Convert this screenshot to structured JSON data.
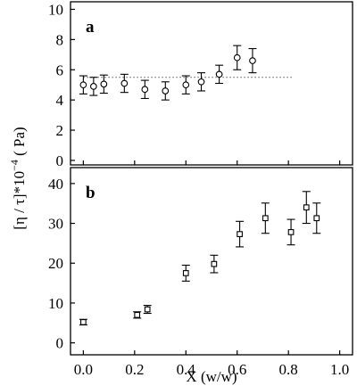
{
  "chart_data": [
    {
      "type": "scatter",
      "panel_label": "a",
      "marker": "circle",
      "x": [
        0.0,
        0.04,
        0.08,
        0.16,
        0.24,
        0.32,
        0.4,
        0.46,
        0.53,
        0.6,
        0.66
      ],
      "y": [
        5.0,
        4.9,
        5.05,
        5.1,
        4.7,
        4.6,
        5.0,
        5.2,
        5.7,
        6.8,
        6.6
      ],
      "err": [
        0.6,
        0.6,
        0.6,
        0.6,
        0.6,
        0.6,
        0.6,
        0.6,
        0.6,
        0.8,
        0.8
      ],
      "reference_line": {
        "y": 5.5,
        "x_range": [
          0.0,
          0.82
        ],
        "style": "dotted"
      },
      "ylim": [
        -0.3,
        10.5
      ],
      "yticks": [
        "0",
        "2",
        "4",
        "6",
        "8",
        "10"
      ],
      "ytick_values": [
        0,
        2,
        4,
        6,
        8,
        10
      ]
    },
    {
      "type": "scatter",
      "panel_label": "b",
      "marker": "square",
      "x": [
        0.0,
        0.21,
        0.25,
        0.4,
        0.51,
        0.61,
        0.71,
        0.81,
        0.87,
        0.91
      ],
      "y": [
        5.2,
        7.0,
        8.4,
        17.5,
        19.8,
        27.3,
        31.3,
        27.8,
        34.0,
        31.3
      ],
      "err": [
        0.7,
        0.8,
        1.0,
        2.0,
        2.2,
        3.2,
        3.8,
        3.2,
        4.0,
        3.8
      ],
      "ylim": [
        -3,
        44
      ],
      "yticks": [
        "0",
        "10",
        "20",
        "30",
        "40"
      ],
      "ytick_values": [
        0,
        10,
        20,
        30,
        40
      ]
    }
  ],
  "shared_x": {
    "xlabel": "X (w/w)",
    "xlim": [
      -0.05,
      1.05
    ],
    "xticks": [
      "0.0",
      "0.2",
      "0.4",
      "0.6",
      "0.8",
      "1.0"
    ],
    "xtick_values": [
      0.0,
      0.2,
      0.4,
      0.6,
      0.8,
      1.0
    ]
  },
  "shared_y": {
    "ylabel_main": "[η / τ]*10",
    "ylabel_exponent": "−4",
    "ylabel_unit": " ( Pa)"
  }
}
